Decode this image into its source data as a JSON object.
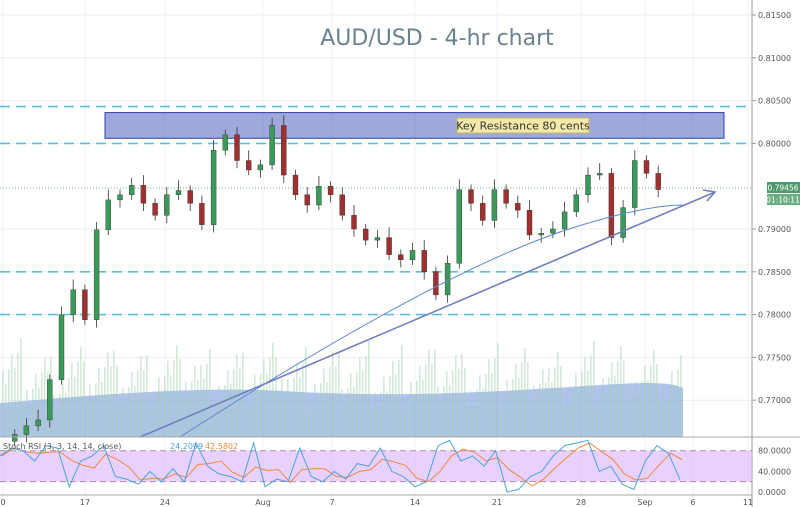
{
  "chart_data": {
    "type": "candlestick",
    "title": "AUD/USD - 4-hr chart",
    "annotation": "Key Resistance 80 cents",
    "ylim": [
      0.766,
      0.817
    ],
    "y_ticks": [
      "0.81500",
      "0.81000",
      "0.80500",
      "0.80000",
      "0.79000",
      "0.78500",
      "0.78000",
      "0.77500",
      "0.77000"
    ],
    "x_ticks": [
      "0",
      "17",
      "24",
      "Aug",
      "7",
      "14",
      "21",
      "28",
      "Sep",
      "6",
      "11"
    ],
    "last_price": "0.79456",
    "countdown": "01:10:11",
    "resistance_zone": [
      0.8006,
      0.8036
    ],
    "horizontal_levels": [
      0.8043,
      0.8,
      0.785,
      0.78
    ],
    "closes": [
      [
        "Jul 11",
        0.766
      ],
      [
        "Jul 12",
        0.767
      ],
      [
        "Jul 13",
        0.7677
      ],
      [
        "Jul 14",
        0.7724
      ],
      [
        "Jul 15",
        0.78
      ],
      [
        "Jul 16",
        0.7829
      ],
      [
        "Jul 17",
        0.7794
      ],
      [
        "Jul 18",
        0.7899
      ],
      [
        "Jul 19",
        0.7934
      ],
      [
        "Jul 20",
        0.794
      ],
      [
        "Jul 21",
        0.7951
      ],
      [
        "Jul 22",
        0.793
      ],
      [
        "Jul 23",
        0.7916
      ],
      [
        "Jul 24",
        0.794
      ],
      [
        "Jul 25",
        0.7945
      ],
      [
        "Jul 26",
        0.793
      ],
      [
        "Jul 27",
        0.7905
      ],
      [
        "Jul 28",
        0.7992
      ],
      [
        "Jul 29",
        0.801
      ],
      [
        "Jul 30",
        0.798
      ],
      [
        "Jul 31",
        0.7969
      ],
      [
        "Aug 1",
        0.7975
      ],
      [
        "Aug 2",
        0.8021
      ],
      [
        "Aug 3",
        0.7963
      ],
      [
        "Aug 4",
        0.794
      ],
      [
        "Aug 5",
        0.7928
      ],
      [
        "Aug 6",
        0.795
      ],
      [
        "Aug 7",
        0.794
      ],
      [
        "Aug 8",
        0.7916
      ],
      [
        "Aug 9",
        0.79
      ],
      [
        "Aug 10",
        0.7887
      ],
      [
        "Aug 11",
        0.789
      ],
      [
        "Aug 12",
        0.787
      ],
      [
        "Aug 13",
        0.7864
      ],
      [
        "Aug 14",
        0.7875
      ],
      [
        "Aug 15",
        0.785
      ],
      [
        "Aug 16",
        0.7823
      ],
      [
        "Aug 17",
        0.786
      ],
      [
        "Aug 18",
        0.7946
      ],
      [
        "Aug 19",
        0.793
      ],
      [
        "Aug 20",
        0.791
      ],
      [
        "Aug 21",
        0.7946
      ],
      [
        "Aug 22",
        0.793
      ],
      [
        "Aug 23",
        0.7922
      ],
      [
        "Aug 24",
        0.7893
      ],
      [
        "Aug 25",
        0.7895
      ],
      [
        "Aug 26",
        0.79
      ],
      [
        "Aug 27",
        0.792
      ],
      [
        "Aug 28",
        0.794
      ],
      [
        "Aug 29",
        0.7963
      ],
      [
        "Aug 30",
        0.7965
      ],
      [
        "Aug 31",
        0.789
      ],
      [
        "Sep 1",
        0.7925
      ],
      [
        "Sep 2",
        0.798
      ],
      [
        "Sep 3",
        0.7965
      ],
      [
        "Sep 4",
        0.7946
      ]
    ],
    "indicator": {
      "label": "Stoch RSI (3, 3, 14, 14, close)",
      "k_value": "24.2099",
      "d_value": "42.5802",
      "y_ticks": [
        "80.0000",
        "40.0000",
        "0.0000"
      ],
      "bands": [
        80,
        20
      ],
      "k": [
        70,
        85,
        80,
        60,
        90,
        85,
        10,
        60,
        70,
        90,
        30,
        25,
        15,
        40,
        20,
        45,
        20,
        95,
        50,
        35,
        30,
        20,
        95,
        10,
        25,
        20,
        85,
        30,
        20,
        40,
        25,
        55,
        50,
        85,
        40,
        30,
        10,
        20,
        90,
        100,
        60,
        70,
        50,
        80,
        0,
        5,
        30,
        40,
        70,
        90,
        95,
        100,
        40,
        50,
        15,
        5,
        60,
        90,
        75,
        24
      ],
      "colors": {
        "k": "#4aa3df",
        "d": "#f0883e",
        "band": "#d9b3ff"
      }
    },
    "colors": {
      "up": "#3a9a5a",
      "down": "#a03030",
      "level": "#5bc0de",
      "zone": "#5060c0",
      "trend": "#7080c0",
      "volume": "#6f8fe0"
    }
  }
}
